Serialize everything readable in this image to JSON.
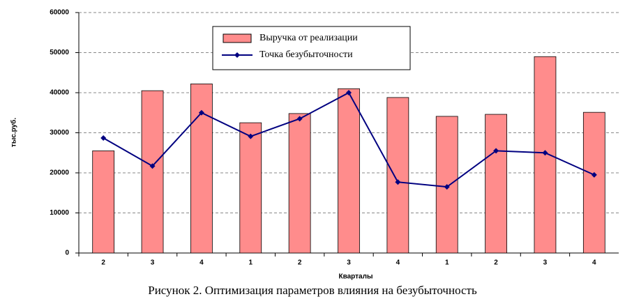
{
  "chart_data": {
    "type": "bar",
    "caption": "Рисунок 2. Оптимизация параметров влияния на безубыточность",
    "x_label": "Кварталы",
    "y_label": "тыс.руб.",
    "categories": [
      "2",
      "3",
      "4",
      "1",
      "2",
      "3",
      "4",
      "1",
      "2",
      "3",
      "4"
    ],
    "series": [
      {
        "name": "Выручка от реализации",
        "type": "bar",
        "color": "#ff8c8c",
        "values": [
          25500,
          40500,
          42200,
          32500,
          34800,
          41000,
          38800,
          34100,
          34600,
          49000,
          35100
        ]
      },
      {
        "name": "Точка безубыточности",
        "type": "line",
        "color": "#000080",
        "values": [
          28700,
          21700,
          35000,
          29100,
          33500,
          40000,
          17700,
          16500,
          25500,
          25000,
          19500
        ]
      }
    ],
    "ylim": [
      0,
      60000
    ],
    "yticks": [
      0,
      10000,
      20000,
      30000,
      40000,
      50000,
      60000
    ],
    "grid": true
  }
}
